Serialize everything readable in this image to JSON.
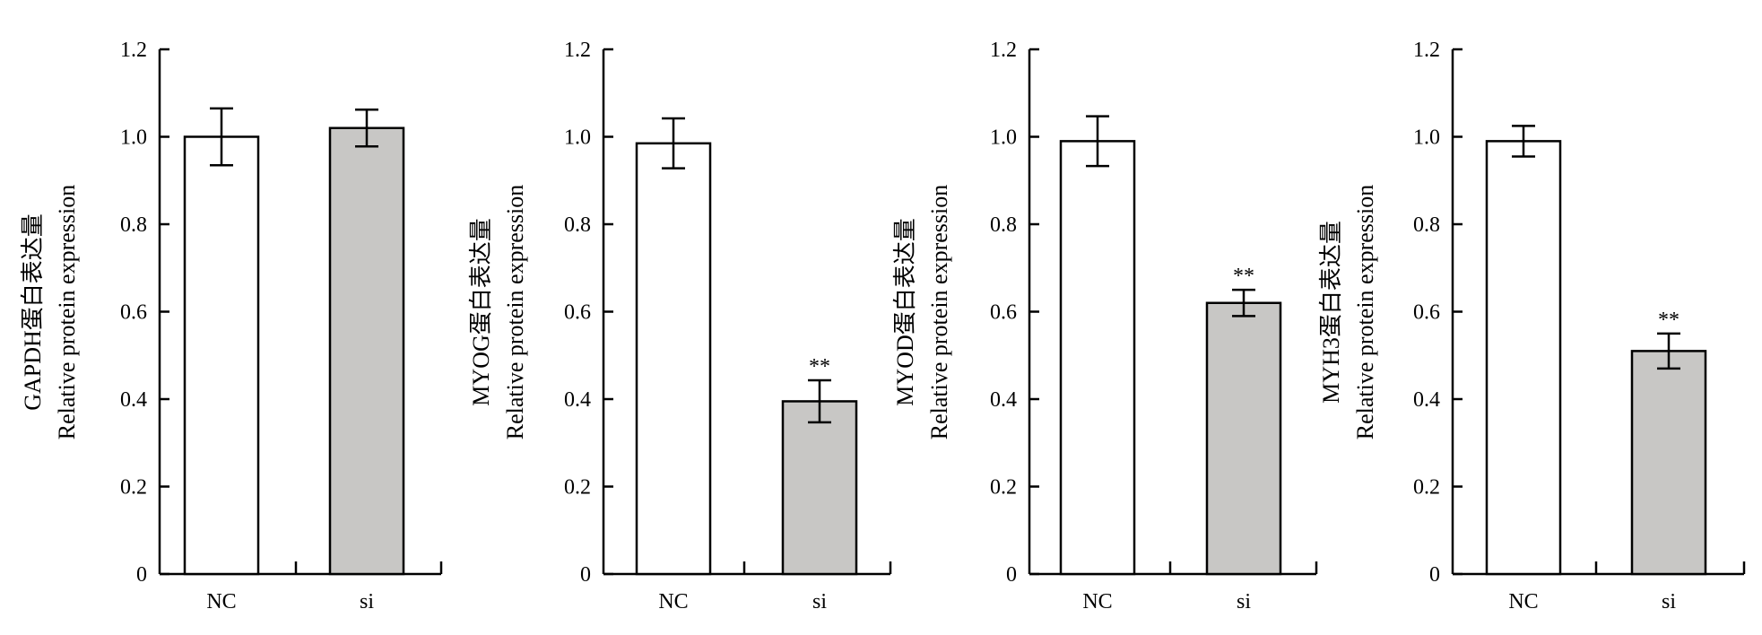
{
  "chart_data": [
    {
      "type": "bar",
      "ylabel_line1": "GAPDH蛋白表达量",
      "ylabel_line2": "Relative protein expression",
      "categories": [
        "NC",
        "si"
      ],
      "values": [
        1.0,
        1.02
      ],
      "errors": [
        0.065,
        0.042
      ],
      "significance": [
        "",
        ""
      ],
      "ylim": [
        0,
        1.2
      ],
      "yticks": [
        "0",
        "0.2",
        "0.4",
        "0.6",
        "0.8",
        "1.0",
        "1.2"
      ]
    },
    {
      "type": "bar",
      "ylabel_line1": "MYOG蛋白表达量",
      "ylabel_line2": "Relative protein expression",
      "categories": [
        "NC",
        "si"
      ],
      "values": [
        0.985,
        0.395
      ],
      "errors": [
        0.057,
        0.048
      ],
      "significance": [
        "",
        "**"
      ],
      "ylim": [
        0,
        1.2
      ],
      "yticks": [
        "0",
        "0.2",
        "0.4",
        "0.6",
        "0.8",
        "1.0",
        "1.2"
      ]
    },
    {
      "type": "bar",
      "ylabel_line1": "MYOD蛋白表达量",
      "ylabel_line2": "Relative protein expression",
      "categories": [
        "NC",
        "si"
      ],
      "values": [
        0.99,
        0.62
      ],
      "errors": [
        0.057,
        0.03
      ],
      "significance": [
        "",
        "**"
      ],
      "ylim": [
        0,
        1.2
      ],
      "yticks": [
        "0",
        "0.2",
        "0.4",
        "0.6",
        "0.8",
        "1.0",
        "1.2"
      ]
    },
    {
      "type": "bar",
      "ylabel_line1": "MYH3蛋白表达量",
      "ylabel_line2": "Relative protein expression",
      "categories": [
        "NC",
        "si"
      ],
      "values": [
        0.99,
        0.51
      ],
      "errors": [
        0.035,
        0.04
      ],
      "significance": [
        "",
        "**"
      ],
      "ylim": [
        0,
        1.2
      ],
      "yticks": [
        "0",
        "0.2",
        "0.4",
        "0.6",
        "0.8",
        "1.0",
        "1.2"
      ]
    }
  ],
  "colors": {
    "bar_nc": "#ffffff",
    "bar_si": "#c8c7c5",
    "axis": "#000000"
  }
}
